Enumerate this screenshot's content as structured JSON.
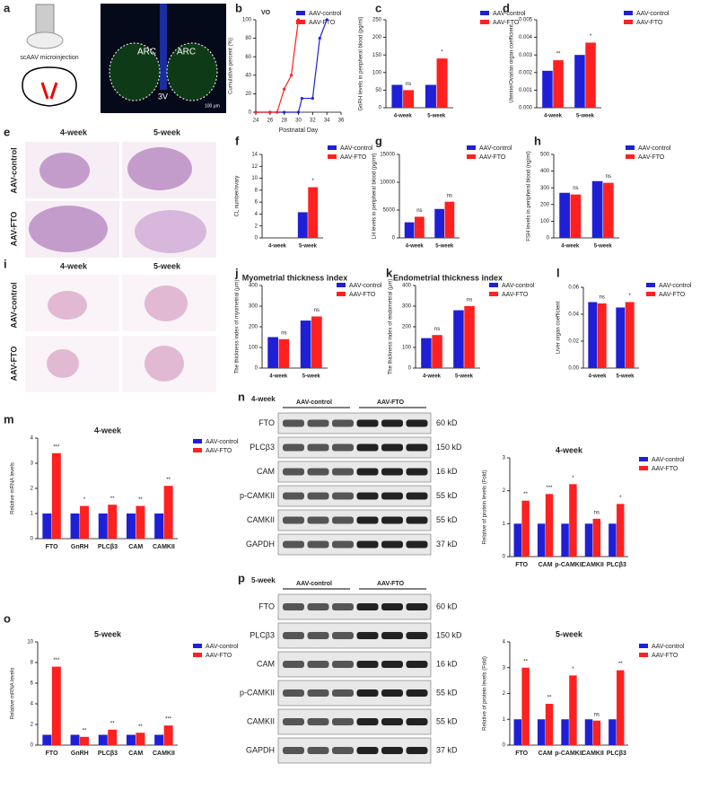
{
  "chart_data": [
    {
      "type": "line",
      "panel": "b",
      "title": "VO",
      "x_label": "Postnatal Day",
      "y_label": "Cumulative percent (%)",
      "xlim": [
        24,
        36
      ],
      "xticks": [
        24,
        26,
        28,
        30,
        32,
        34,
        36
      ],
      "ylim": [
        0,
        100
      ],
      "yticks": [
        0,
        20,
        40,
        60,
        80,
        100
      ],
      "series": [
        {
          "name": "AAV-control",
          "color": "#1f1fd6",
          "x": [
            24,
            26,
            28,
            30,
            30.5,
            32,
            33,
            34
          ],
          "values": [
            0,
            0,
            0,
            0,
            15,
            15,
            80,
            100
          ]
        },
        {
          "name": "AAV-FTO",
          "color": "#ff2020",
          "x": [
            24,
            26,
            27,
            28,
            29,
            30
          ],
          "values": [
            0,
            0,
            0,
            25,
            40,
            100
          ]
        }
      ]
    },
    {
      "type": "bar",
      "panel": "c",
      "y_label": "GnRH levels in peripheral blood (pg/ml)",
      "categories": [
        "4-week",
        "5-week"
      ],
      "ylim": [
        0,
        250
      ],
      "yticks": [
        0,
        50,
        100,
        150,
        200,
        250
      ],
      "series": [
        {
          "name": "AAV-control",
          "color": "#1f1fd6",
          "values": [
            65,
            65
          ]
        },
        {
          "name": "AAV-FTO",
          "color": "#ff2020",
          "values": [
            50,
            140
          ],
          "annotations": [
            "ns",
            "*"
          ]
        }
      ]
    },
    {
      "type": "bar",
      "panel": "d",
      "y_label": "Uterine/Ovarian organ coefficient",
      "categories": [
        "4-week",
        "5-week"
      ],
      "ylim": [
        0,
        0.005
      ],
      "yticks": [
        {
          "value": 0,
          "label": "0.000"
        },
        {
          "value": 0.001,
          "label": "0.001"
        },
        {
          "value": 0.002,
          "label": "0.002"
        },
        {
          "value": 0.003,
          "label": "0.003"
        },
        {
          "value": 0.004,
          "label": "0.004"
        },
        {
          "value": 0.005,
          "label": "0.005"
        }
      ],
      "series": [
        {
          "name": "AAV-control",
          "color": "#1f1fd6",
          "values": [
            0.0021,
            0.003
          ]
        },
        {
          "name": "AAV-FTO",
          "color": "#ff2020",
          "values": [
            0.0027,
            0.0037
          ],
          "annotations": [
            "**",
            "*"
          ]
        }
      ]
    },
    {
      "type": "bar",
      "panel": "f",
      "y_label": "CL number/ovary",
      "categories": [
        "4-week",
        "5-week"
      ],
      "ylim": [
        0,
        14
      ],
      "yticks": [
        0,
        2,
        4,
        6,
        8,
        10,
        12,
        14
      ],
      "series": [
        {
          "name": "AAV-control",
          "color": "#1f1fd6",
          "values": [
            0,
            4.3
          ]
        },
        {
          "name": "AAV-FTO",
          "color": "#ff2020",
          "values": [
            0,
            8.5
          ],
          "annotations": [
            null,
            "*"
          ]
        }
      ]
    },
    {
      "type": "bar",
      "panel": "g",
      "y_label": "LH levels in peripheral blood (pg/ml)",
      "categories": [
        "4-week",
        "5-week"
      ],
      "ylim": [
        0,
        15000
      ],
      "yticks": [
        0,
        5000,
        10000,
        15000
      ],
      "series": [
        {
          "name": "AAV-control",
          "color": "#1f1fd6",
          "values": [
            2800,
            5200
          ]
        },
        {
          "name": "AAV-FTO",
          "color": "#ff2020",
          "values": [
            3800,
            6500
          ],
          "annotations": [
            "ns",
            "ns"
          ]
        }
      ]
    },
    {
      "type": "bar",
      "panel": "h",
      "y_label": "FSH levels in peripheral blood (ng/ml)",
      "categories": [
        "4-week",
        "5-week"
      ],
      "ylim": [
        0,
        500
      ],
      "yticks": [
        0,
        100,
        200,
        300,
        400,
        500
      ],
      "series": [
        {
          "name": "AAV-control",
          "color": "#1f1fd6",
          "values": [
            270,
            340
          ]
        },
        {
          "name": "AAV-FTO",
          "color": "#ff2020",
          "values": [
            260,
            330
          ],
          "annotations": [
            "ns",
            "ns"
          ]
        }
      ]
    },
    {
      "type": "bar",
      "panel": "j",
      "title": "Myometrial thickness index",
      "y_label": "The thickness index of myometrial (μm)",
      "categories": [
        "4-week",
        "5-week"
      ],
      "ylim": [
        0,
        400
      ],
      "yticks": [
        0,
        100,
        200,
        300,
        400
      ],
      "series": [
        {
          "name": "AAV-control",
          "color": "#1f1fd6",
          "values": [
            150,
            230
          ]
        },
        {
          "name": "AAV-FTO",
          "color": "#ff2020",
          "values": [
            140,
            250
          ],
          "annotations": [
            "ns",
            "ns"
          ]
        }
      ]
    },
    {
      "type": "bar",
      "panel": "k",
      "title": "Endometrial thickness index",
      "y_label": "The thickness index of endometrial (μm)",
      "categories": [
        "4-week",
        "5-week"
      ],
      "ylim": [
        0,
        400
      ],
      "yticks": [
        0,
        100,
        200,
        300,
        400
      ],
      "series": [
        {
          "name": "AAV-control",
          "color": "#1f1fd6",
          "values": [
            145,
            280
          ]
        },
        {
          "name": "AAV-FTO",
          "color": "#ff2020",
          "values": [
            160,
            300
          ],
          "annotations": [
            "ns",
            "ns"
          ]
        }
      ]
    },
    {
      "type": "bar",
      "panel": "l",
      "y_label": "Liver organ coefficient",
      "categories": [
        "4-week",
        "5-week"
      ],
      "ylim": [
        0,
        0.06
      ],
      "yticks": [
        {
          "value": 0,
          "label": "0.00"
        },
        {
          "value": 0.02,
          "label": "0.02"
        },
        {
          "value": 0.04,
          "label": "0.04"
        },
        {
          "value": 0.06,
          "label": "0.06"
        }
      ],
      "series": [
        {
          "name": "AAV-control",
          "color": "#1f1fd6",
          "values": [
            0.049,
            0.045
          ]
        },
        {
          "name": "AAV-FTO",
          "color": "#ff2020",
          "values": [
            0.048,
            0.049
          ],
          "annotations": [
            "ns",
            "*"
          ]
        }
      ]
    },
    {
      "type": "bar",
      "panel": "m",
      "title": "4-week",
      "y_label": "Relative mRNA levels",
      "categories": [
        "FTO",
        "GnRH",
        "PLCβ3",
        "CAM",
        "CAMKII"
      ],
      "ylim": [
        0,
        4
      ],
      "yticks": [
        0,
        1,
        2,
        3,
        4
      ],
      "series": [
        {
          "name": "AAV-control",
          "color": "#1f1fd6",
          "values": [
            1,
            1,
            1,
            1,
            1
          ]
        },
        {
          "name": "AAV-FTO",
          "color": "#ff2020",
          "values": [
            3.4,
            1.3,
            1.35,
            1.3,
            2.1
          ],
          "annotations": [
            "***",
            "*",
            "**",
            "**",
            "**"
          ]
        }
      ]
    },
    {
      "type": "bar",
      "panel": "n",
      "title": "4-week",
      "y_label": "Relative of protein levels (Fold)",
      "categories": [
        "FTO",
        "CAM",
        "p-CAMKII",
        "CAMKII",
        "PLCβ3"
      ],
      "ylim": [
        0,
        3
      ],
      "yticks": [
        0,
        1,
        2,
        3
      ],
      "series": [
        {
          "name": "AAV-control",
          "color": "#1f1fd6",
          "values": [
            1,
            1,
            1,
            1,
            1
          ]
        },
        {
          "name": "AAV-FTO",
          "color": "#ff2020",
          "values": [
            1.7,
            1.9,
            2.2,
            1.15,
            1.6
          ],
          "annotations": [
            "**",
            "***",
            "*",
            "ns",
            "*"
          ]
        }
      ]
    },
    {
      "type": "bar",
      "panel": "o",
      "title": "5-week",
      "y_label": "Relative mRNA levels",
      "categories": [
        "FTO",
        "GnRH",
        "PLCβ3",
        "CAM",
        "CAMKII"
      ],
      "ylim": [
        0,
        10
      ],
      "yticks": [
        0,
        2,
        4,
        6,
        8,
        10
      ],
      "series": [
        {
          "name": "AAV-control",
          "color": "#1f1fd6",
          "values": [
            1,
            1,
            1,
            1,
            1
          ]
        },
        {
          "name": "AAV-FTO",
          "color": "#ff2020",
          "values": [
            7.6,
            0.8,
            1.5,
            1.2,
            1.9
          ],
          "annotations": [
            "***",
            "**",
            "**",
            "**",
            "***"
          ]
        }
      ]
    },
    {
      "type": "bar",
      "panel": "p",
      "title": "5-week",
      "y_label": "Relative of protein levels (Fold)",
      "categories": [
        "FTO",
        "CAM",
        "p-CAMKII",
        "CAMKII",
        "PLCβ3"
      ],
      "ylim": [
        0,
        4
      ],
      "yticks": [
        0,
        1,
        2,
        3,
        4
      ],
      "series": [
        {
          "name": "AAV-control",
          "color": "#1f1fd6",
          "values": [
            1,
            1,
            1,
            1,
            1
          ]
        },
        {
          "name": "AAV-FTO",
          "color": "#ff2020",
          "values": [
            3.0,
            1.6,
            2.7,
            0.95,
            2.9
          ],
          "annotations": [
            "**",
            "**",
            "*",
            "ns",
            "**"
          ]
        }
      ]
    }
  ],
  "figure": {
    "a": {
      "panel": "a",
      "caption": "scAAV microinjection",
      "regions": [
        "ARC",
        "ARC",
        "3V"
      ],
      "scale": "100 μm"
    },
    "e": {
      "panel": "e",
      "columns": [
        "4-week",
        "5-week"
      ],
      "rows": [
        "AAV-control",
        "AAV-FTO"
      ]
    },
    "i": {
      "panel": "i",
      "columns": [
        "4-week",
        "5-week"
      ],
      "rows": [
        "AAV-control",
        "AAV-FTO"
      ]
    },
    "n": {
      "panel": "n",
      "stage": "4-week",
      "groups": [
        "AAV-control",
        "AAV-FTO"
      ],
      "proteins": [
        "FTO",
        "PLCβ3",
        "CAM",
        "p-CAMKII",
        "CAMKII",
        "GAPDH"
      ],
      "sizes": [
        "60 kD",
        "150 kD",
        "16 kD",
        "55 kD",
        "55 kD",
        "37 kD"
      ]
    },
    "p": {
      "panel": "p",
      "stage": "5-week",
      "groups": [
        "AAV-control",
        "AAV-FTO"
      ],
      "proteins": [
        "FTO",
        "PLCβ3",
        "CAM",
        "p-CAMKII",
        "CAMKII",
        "GAPDH"
      ],
      "sizes": [
        "60 kD",
        "150 kD",
        "16 kD",
        "55 kD",
        "55 kD",
        "37 kD"
      ]
    }
  }
}
